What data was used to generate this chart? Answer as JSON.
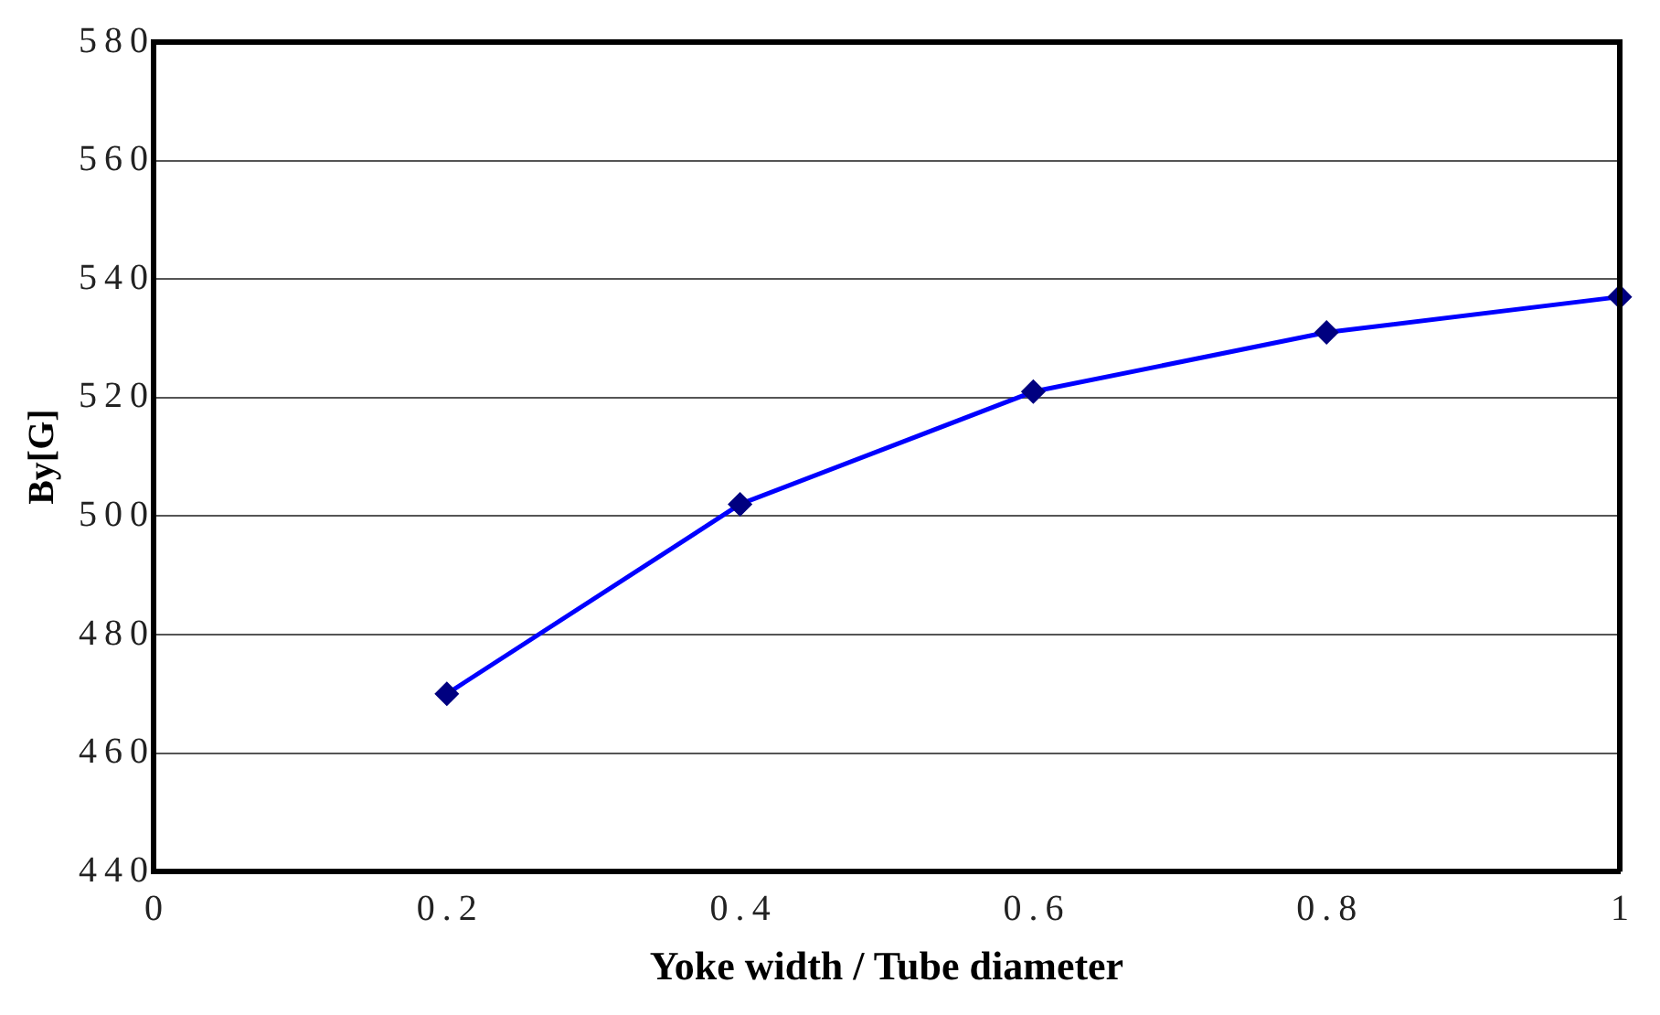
{
  "chart_data": {
    "type": "line",
    "xlabel": "Yoke width / Tube diameter",
    "ylabel": "By[G]",
    "x": [
      0.2,
      0.4,
      0.6,
      0.8,
      1
    ],
    "series": [
      {
        "color": "#0000ff",
        "values": [
          470,
          502,
          521,
          531,
          537
        ]
      }
    ],
    "xlim": [
      0,
      1
    ],
    "xticks": [
      0,
      0.2,
      0.4,
      0.6,
      0.8,
      1
    ],
    "ylim": [
      440,
      580
    ],
    "yticks": [
      440,
      460,
      480,
      500,
      520,
      540,
      560,
      580
    ],
    "grid": "y",
    "legend": false,
    "marker": "diamond",
    "line_style": "solid"
  }
}
